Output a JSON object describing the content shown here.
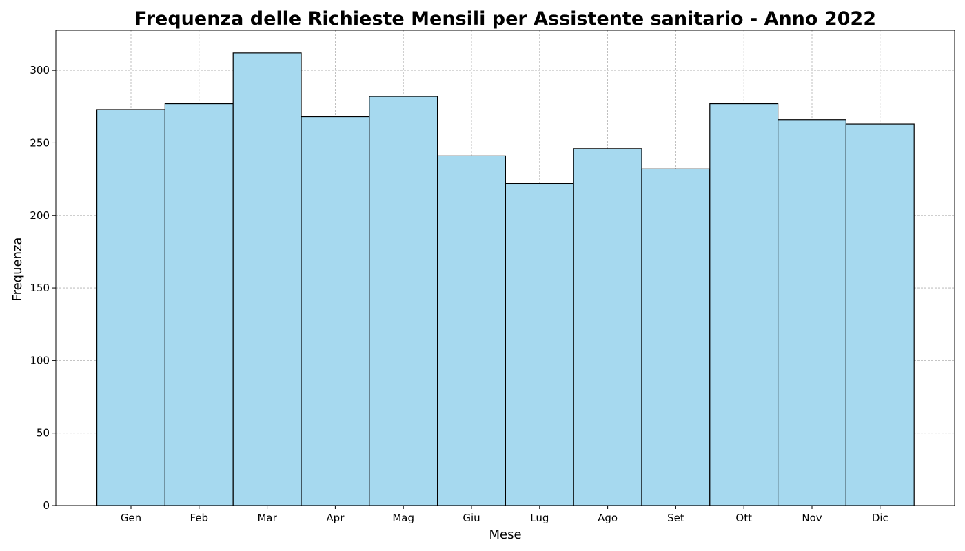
{
  "chart_data": {
    "type": "bar",
    "title": "Frequenza delle Richieste Mensili per Assistente sanitario - Anno 2022",
    "xlabel": "Mese",
    "ylabel": "Frequenza",
    "categories": [
      "Gen",
      "Feb",
      "Mar",
      "Apr",
      "Mag",
      "Giu",
      "Lug",
      "Ago",
      "Set",
      "Ott",
      "Nov",
      "Dic"
    ],
    "values": [
      273,
      277,
      312,
      268,
      282,
      241,
      222,
      246,
      232,
      277,
      266,
      263
    ],
    "yticks": [
      0,
      50,
      100,
      150,
      200,
      250,
      300
    ],
    "ylim": [
      0,
      327.6
    ],
    "grid": true,
    "bar_color": "#a6d9ef",
    "edge_color": "#000000"
  }
}
